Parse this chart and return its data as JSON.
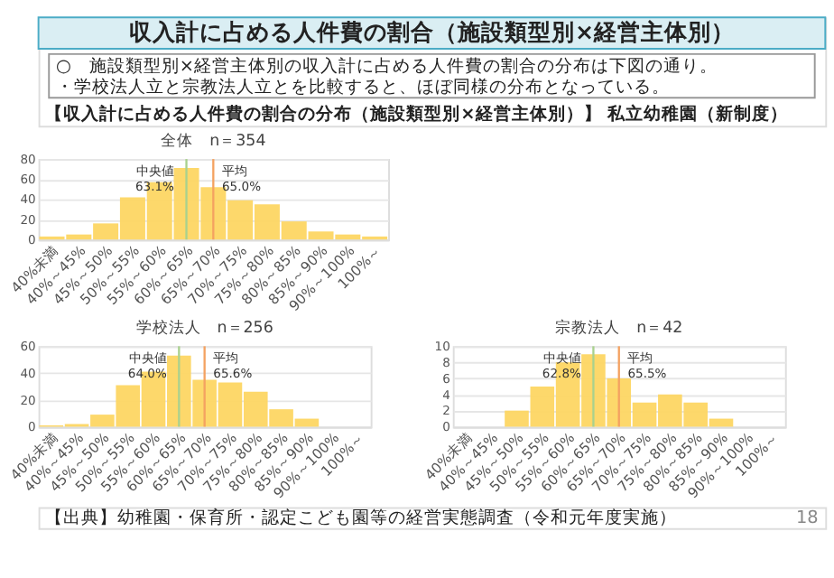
{
  "chart_data": [
    {
      "type": "other",
      "title": "収入計に占める人件費の割合（施設類型別×経営主体別）",
      "annotations": [
        "○　施設類型別×経営主体別の収入計に占める人件費の割合の分布は下図の通り。",
        "・学校法人立と宗教法人立とを比較すると、ほぼ同様の分布となっている。",
        "【収入計に占める人件費の割合の分布（施設類型別×経営主体別）】 私立幼稚園（新制度）",
        "【出典】幼稚園・保育所・認定こども園等の経営実態調査（令和元年度実施）",
        "18"
      ]
    },
    {
      "type": "bar",
      "title": "全体　n＝354",
      "categories": [
        "40%未満",
        "40%～45%",
        "45%～50%",
        "50%～55%",
        "55%～60%",
        "60%～65%",
        "65%～70%",
        "70%～75%",
        "75%～80%",
        "80%～85%",
        "85%～90%",
        "90%～100%",
        "100%～"
      ],
      "values": [
        3,
        5,
        16,
        42,
        57,
        71,
        52,
        39,
        35,
        18,
        8,
        5,
        3
      ],
      "color": "#fdd663",
      "ylim": [
        0,
        80
      ],
      "yticks": [
        0,
        20,
        40,
        60,
        80
      ],
      "grid": "y",
      "ref_lines": [
        {
          "axis": "x",
          "value": "60%～65%",
          "label": "中央値\n63.1%",
          "color": "#a9d18e"
        },
        {
          "axis": "x",
          "value": "65%～70%",
          "label": "平均\n65.0%",
          "color": "#f4a261"
        }
      ]
    },
    {
      "type": "bar",
      "title": "学校法人　n＝256",
      "categories": [
        "40%未満",
        "40%～45%",
        "45%～50%",
        "50%～55%",
        "55%～60%",
        "60%～65%",
        "65%～70%",
        "70%～75%",
        "75%～80%",
        "80%～85%",
        "85%～90%",
        "90%～100%",
        "100%～"
      ],
      "values": [
        1,
        2,
        9,
        31,
        41,
        53,
        35,
        33,
        26,
        13,
        6,
        0,
        0
      ],
      "color": "#fdd663",
      "ylim": [
        0,
        60
      ],
      "yticks": [
        0,
        20,
        40,
        60
      ],
      "grid": "y",
      "ref_lines": [
        {
          "axis": "x",
          "value": "60%～65%",
          "label": "中央値\n64.0%",
          "color": "#a9d18e"
        },
        {
          "axis": "x",
          "value": "65%～70%",
          "label": "平均\n65.6%",
          "color": "#f4a261"
        }
      ]
    },
    {
      "type": "bar",
      "title": "宗教法人　n＝42",
      "categories": [
        "40%未満",
        "40%～45%",
        "45%～50%",
        "50%～55%",
        "55%～60%",
        "60%～65%",
        "65%～70%",
        "70%～75%",
        "75%～80%",
        "80%～85%",
        "85%～90%",
        "90%～100%",
        "100%～"
      ],
      "values": [
        0,
        0,
        2,
        5,
        8,
        9,
        6,
        3,
        4,
        3,
        1,
        0,
        0
      ],
      "color": "#fdd663",
      "ylim": [
        0,
        10
      ],
      "yticks": [
        0,
        2,
        4,
        6,
        8,
        10
      ],
      "grid": "y",
      "ref_lines": [
        {
          "axis": "x",
          "value": "60%～65%",
          "label": "中央値\n62.8%",
          "color": "#a9d18e"
        },
        {
          "axis": "x",
          "value": "65%～70%",
          "label": "平均\n65.5%",
          "color": "#f4a261"
        }
      ]
    }
  ]
}
